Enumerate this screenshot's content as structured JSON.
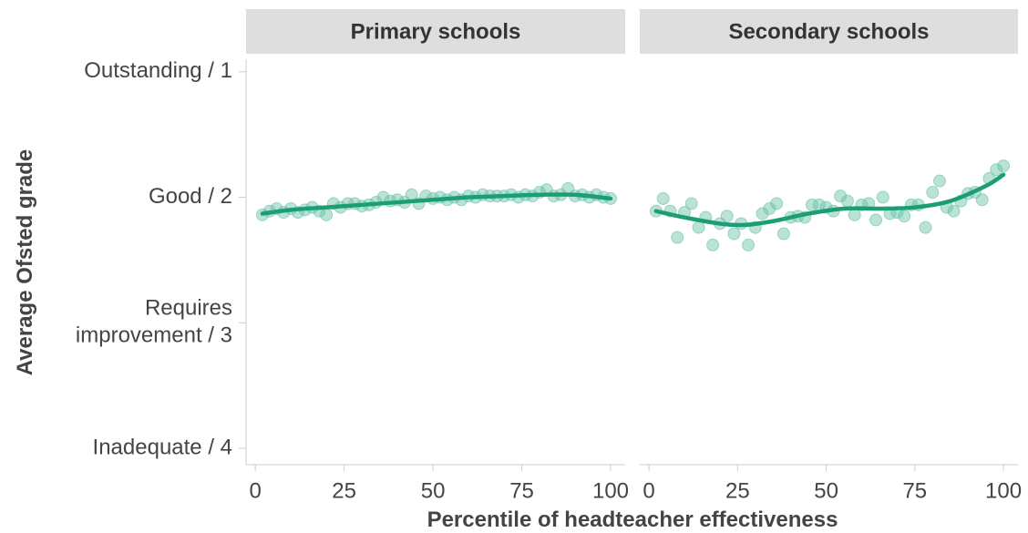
{
  "chart_data": {
    "type": "scatter",
    "ylabel": "Average Ofsted grade",
    "xlabel": "Percentile of headteacher effectiveness",
    "ylim": [
      4.13,
      0.9
    ],
    "yticks": [
      {
        "value": 1,
        "label": "Outstanding / 1"
      },
      {
        "value": 2,
        "label": "Good / 2"
      },
      {
        "value": 3,
        "label": "Requires\nimprovement / 3"
      },
      {
        "value": 4,
        "label": "Inadequate / 4"
      }
    ],
    "xlim": [
      -2.6,
      104.1
    ],
    "xticks": [
      0,
      25,
      50,
      75,
      100
    ],
    "point_color": "#66c2a5",
    "line_color": "#1b9e77",
    "panels": [
      {
        "title": "Primary schools",
        "x": [
          2,
          4,
          6,
          8,
          10,
          12,
          14,
          16,
          18,
          20,
          22,
          24,
          26,
          28,
          30,
          32,
          34,
          36,
          38,
          40,
          42,
          44,
          46,
          48,
          50,
          52,
          54,
          56,
          58,
          60,
          62,
          64,
          66,
          68,
          70,
          72,
          74,
          76,
          78,
          80,
          82,
          84,
          86,
          88,
          90,
          92,
          94,
          96,
          98,
          100
        ],
        "values": [
          2.14,
          2.11,
          2.09,
          2.12,
          2.09,
          2.12,
          2.1,
          2.08,
          2.11,
          2.14,
          2.05,
          2.08,
          2.05,
          2.05,
          2.07,
          2.06,
          2.04,
          2.0,
          2.03,
          2.02,
          2.04,
          1.98,
          2.05,
          1.99,
          2.01,
          2.0,
          2.02,
          2.0,
          2.02,
          1.99,
          2.0,
          1.98,
          1.99,
          1.99,
          1.99,
          1.98,
          2.0,
          1.98,
          1.99,
          1.96,
          1.94,
          1.99,
          1.98,
          1.93,
          1.99,
          1.98,
          2.0,
          1.98,
          2.0,
          2.01
        ],
        "smooth_x": [
          2,
          10,
          20,
          30,
          40,
          50,
          60,
          70,
          80,
          90,
          100
        ],
        "smooth_values": [
          2.13,
          2.1,
          2.08,
          2.06,
          2.04,
          2.02,
          2.0,
          1.99,
          1.98,
          1.98,
          2.01
        ]
      },
      {
        "title": "Secondary schools",
        "x": [
          2,
          4,
          6,
          8,
          10,
          12,
          14,
          16,
          18,
          20,
          22,
          24,
          26,
          28,
          30,
          32,
          34,
          36,
          38,
          40,
          42,
          44,
          46,
          48,
          50,
          52,
          54,
          56,
          58,
          60,
          62,
          64,
          66,
          68,
          70,
          72,
          74,
          76,
          78,
          80,
          82,
          84,
          86,
          88,
          90,
          92,
          94,
          96,
          98,
          100
        ],
        "values": [
          2.11,
          2.01,
          2.11,
          2.32,
          2.12,
          2.05,
          2.24,
          2.16,
          2.38,
          2.21,
          2.15,
          2.29,
          2.21,
          2.38,
          2.24,
          2.13,
          2.09,
          2.05,
          2.29,
          2.16,
          2.15,
          2.16,
          2.06,
          2.06,
          2.08,
          2.11,
          1.99,
          2.03,
          2.14,
          2.06,
          2.05,
          2.18,
          2.0,
          2.13,
          2.12,
          2.15,
          2.06,
          2.06,
          2.24,
          1.96,
          1.87,
          2.08,
          2.11,
          2.03,
          1.97,
          1.96,
          2.02,
          1.85,
          1.78,
          1.75
        ],
        "smooth_x": [
          2,
          10,
          20,
          27,
          35,
          45,
          55,
          65,
          75,
          85,
          95,
          100
        ],
        "smooth_values": [
          2.11,
          2.16,
          2.21,
          2.22,
          2.19,
          2.13,
          2.09,
          2.09,
          2.08,
          2.03,
          1.91,
          1.82
        ]
      }
    ]
  }
}
